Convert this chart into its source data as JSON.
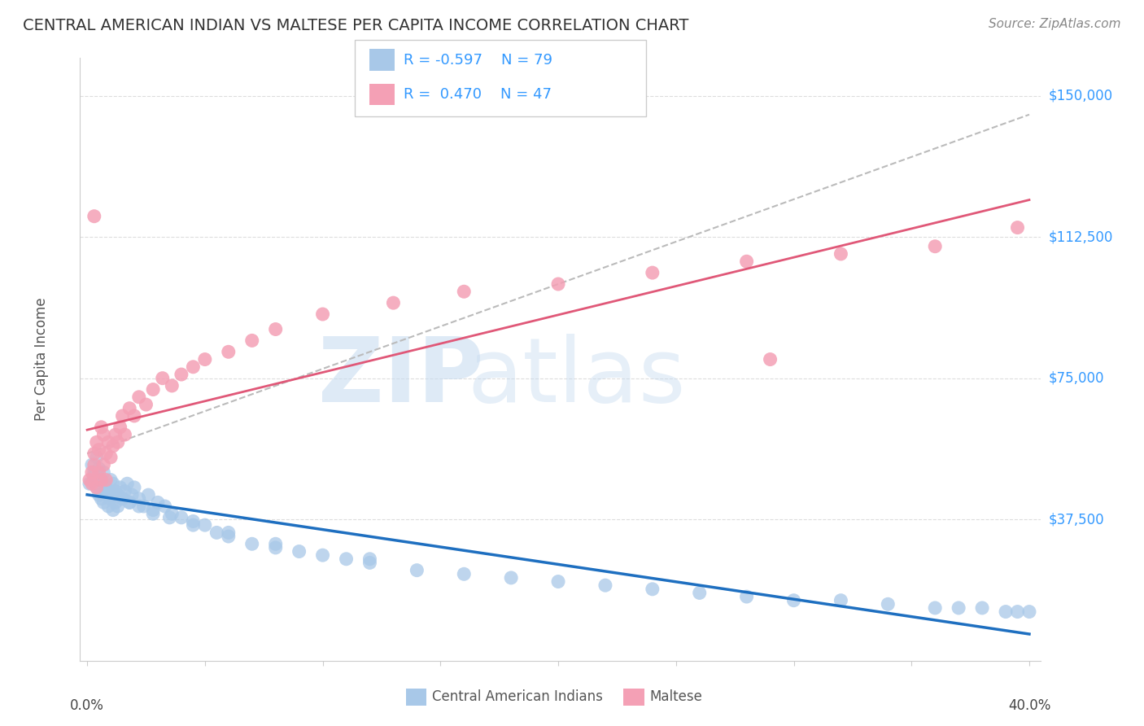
{
  "title": "CENTRAL AMERICAN INDIAN VS MALTESE PER CAPITA INCOME CORRELATION CHART",
  "source": "Source: ZipAtlas.com",
  "ylabel": "Per Capita Income",
  "xlim": [
    0.0,
    0.4
  ],
  "ylim": [
    0,
    160000
  ],
  "blue_label": "Central American Indians",
  "pink_label": "Maltese",
  "blue_R": "-0.597",
  "blue_N": "79",
  "pink_R": "0.470",
  "pink_N": "47",
  "blue_color": "#A8C8E8",
  "pink_color": "#F4A0B5",
  "blue_line_color": "#1E6FC0",
  "pink_line_color": "#E05878",
  "gray_dash_color": "#BBBBBB",
  "title_color": "#333333",
  "source_color": "#888888",
  "axis_label_color": "#555555",
  "ytick_color": "#3399FF",
  "legend_text_color": "#3399FF",
  "grid_color": "#DDDDDD",
  "blue_scatter_x": [
    0.001,
    0.002,
    0.003,
    0.004,
    0.004,
    0.005,
    0.005,
    0.006,
    0.006,
    0.007,
    0.007,
    0.008,
    0.008,
    0.009,
    0.009,
    0.01,
    0.01,
    0.011,
    0.011,
    0.012,
    0.012,
    0.013,
    0.013,
    0.014,
    0.015,
    0.016,
    0.017,
    0.018,
    0.019,
    0.02,
    0.022,
    0.024,
    0.026,
    0.028,
    0.03,
    0.033,
    0.036,
    0.04,
    0.045,
    0.05,
    0.055,
    0.06,
    0.07,
    0.08,
    0.09,
    0.1,
    0.11,
    0.12,
    0.14,
    0.16,
    0.18,
    0.2,
    0.22,
    0.24,
    0.26,
    0.28,
    0.3,
    0.32,
    0.34,
    0.36,
    0.37,
    0.38,
    0.39,
    0.395,
    0.4,
    0.003,
    0.005,
    0.007,
    0.009,
    0.012,
    0.015,
    0.018,
    0.022,
    0.028,
    0.035,
    0.045,
    0.06,
    0.08,
    0.12
  ],
  "blue_scatter_y": [
    47000,
    52000,
    49000,
    54000,
    46000,
    51000,
    44000,
    48000,
    43000,
    50000,
    42000,
    46000,
    45000,
    44000,
    41000,
    48000,
    43000,
    47000,
    40000,
    45000,
    42000,
    44000,
    41000,
    46000,
    43000,
    45000,
    47000,
    42000,
    44000,
    46000,
    43000,
    41000,
    44000,
    40000,
    42000,
    41000,
    39000,
    38000,
    37000,
    36000,
    34000,
    33000,
    31000,
    30000,
    29000,
    28000,
    27000,
    26000,
    24000,
    23000,
    22000,
    21000,
    20000,
    19000,
    18000,
    17000,
    16000,
    16000,
    15000,
    14000,
    14000,
    14000,
    13000,
    13000,
    13000,
    50000,
    48000,
    47000,
    45000,
    44000,
    43000,
    42000,
    41000,
    39000,
    38000,
    36000,
    34000,
    31000,
    27000
  ],
  "pink_scatter_x": [
    0.001,
    0.002,
    0.002,
    0.003,
    0.003,
    0.004,
    0.004,
    0.005,
    0.005,
    0.006,
    0.006,
    0.007,
    0.007,
    0.008,
    0.008,
    0.009,
    0.01,
    0.011,
    0.012,
    0.013,
    0.014,
    0.015,
    0.016,
    0.018,
    0.02,
    0.022,
    0.025,
    0.028,
    0.032,
    0.036,
    0.04,
    0.045,
    0.05,
    0.06,
    0.07,
    0.08,
    0.1,
    0.13,
    0.16,
    0.2,
    0.24,
    0.28,
    0.32,
    0.36,
    0.395,
    0.003,
    0.29
  ],
  "pink_scatter_y": [
    48000,
    50000,
    47000,
    55000,
    52000,
    58000,
    46000,
    56000,
    50000,
    62000,
    48000,
    60000,
    52000,
    55000,
    48000,
    58000,
    54000,
    57000,
    60000,
    58000,
    62000,
    65000,
    60000,
    67000,
    65000,
    70000,
    68000,
    72000,
    75000,
    73000,
    76000,
    78000,
    80000,
    82000,
    85000,
    88000,
    92000,
    95000,
    98000,
    100000,
    103000,
    106000,
    108000,
    110000,
    115000,
    118000,
    80000
  ],
  "gray_line_x": [
    0.0,
    0.4
  ],
  "gray_line_y": [
    55000,
    145000
  ]
}
